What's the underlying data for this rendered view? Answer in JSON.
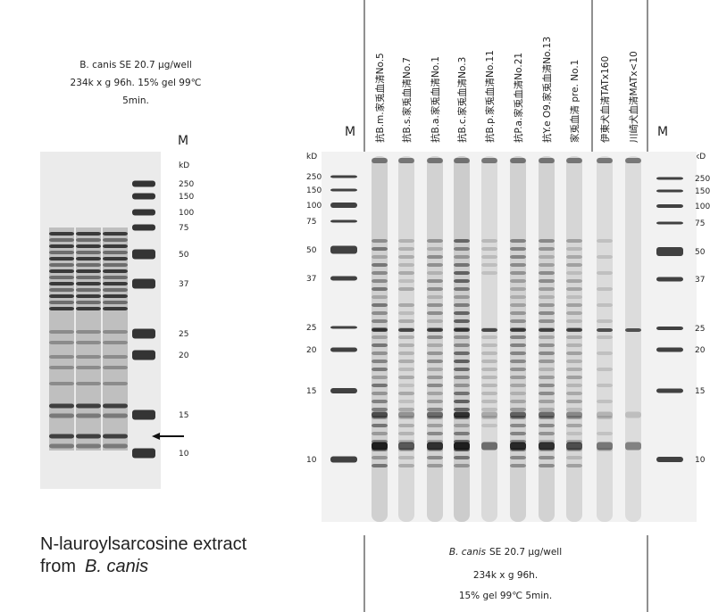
{
  "left_panel": {
    "caption": [
      "B. canis SE 20.7 μg/well",
      "234k x g 96h. 15% gel 99℃",
      "5min."
    ],
    "marker_label": "M",
    "unit": "kD",
    "markers": [
      "250",
      "150",
      "100",
      "75",
      "50",
      "37",
      "25",
      "20",
      "15",
      "10"
    ],
    "footer": {
      "line1": "N-lauroylsarcosine extract",
      "prefix": "from",
      "species": "B. canis"
    }
  },
  "right_panel": {
    "lanes": [
      "抗B.m.家兎血清No.5",
      "抗B.s.家兎血清No.7",
      "抗B.a.家兎血清No.1",
      "抗B.c.家兎血清No.3",
      "抗B.p.家兎血清No.11",
      "抗P.a.家兎血清No.21",
      "抗Y.e O9.家兎血清No.13",
      "家兎血清 pre. No.1",
      "伊東犬血清TATx160",
      "川崎犬血清MATx<10"
    ],
    "marker_labels": [
      "M",
      "M"
    ],
    "left_scale": {
      "unit": "kD",
      "markers": [
        "250",
        "150",
        "100",
        "75",
        "50",
        "37",
        "25",
        "20",
        "15",
        "10"
      ]
    },
    "right_scale": {
      "unit": "kD",
      "markers": [
        "250",
        "150",
        "100",
        "75",
        "50",
        "37",
        "25",
        "20",
        "15",
        "10"
      ]
    },
    "caption": {
      "species": "B. canis",
      "rest": "SE 20.7 μg/well",
      "line2": "234k x g 96h.",
      "line3": "15% gel 99℃ 5min."
    }
  }
}
